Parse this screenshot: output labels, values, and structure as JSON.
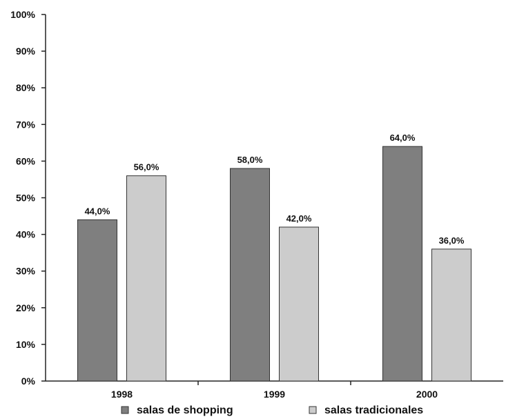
{
  "chart_data": {
    "type": "bar",
    "categories": [
      "1998",
      "1999",
      "2000"
    ],
    "series": [
      {
        "name": "salas de shopping",
        "values": [
          44.0,
          58.0,
          64.0
        ],
        "labels": [
          "44,0%",
          "58,0%",
          "64,0%"
        ],
        "color": "#7f7f7f"
      },
      {
        "name": "salas tradicionales",
        "values": [
          56.0,
          42.0,
          36.0
        ],
        "labels": [
          "56,0%",
          "42,0%",
          "36,0%"
        ],
        "color": "#cccccc"
      }
    ],
    "yticks": [
      "0%",
      "10%",
      "20%",
      "30%",
      "40%",
      "50%",
      "60%",
      "70%",
      "80%",
      "90%",
      "100%"
    ],
    "ylim": [
      0,
      100
    ],
    "grid": false,
    "legend": "bottom",
    "title": "",
    "xlabel": "",
    "ylabel": ""
  }
}
